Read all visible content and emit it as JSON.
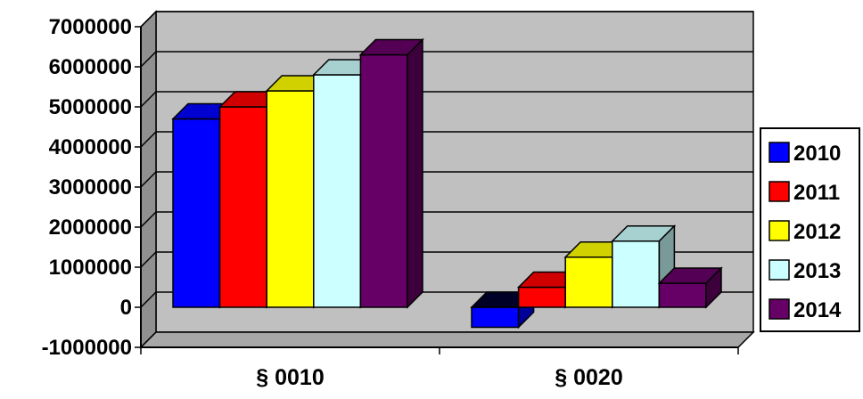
{
  "chart_data": {
    "type": "bar",
    "title": "",
    "xlabel": "",
    "ylabel": "",
    "categories": [
      "§ 0010",
      "§ 0020"
    ],
    "series": [
      {
        "name": "2010",
        "values": [
          4700000,
          -500000
        ],
        "color": "#0000FF"
      },
      {
        "name": "2011",
        "values": [
          5000000,
          500000
        ],
        "color": "#FF0000"
      },
      {
        "name": "2012",
        "values": [
          5400000,
          1250000
        ],
        "color": "#FFFF00"
      },
      {
        "name": "2013",
        "values": [
          5800000,
          1650000
        ],
        "color": "#CCFFFF"
      },
      {
        "name": "2014",
        "values": [
          6300000,
          600000
        ],
        "color": "#660066"
      }
    ],
    "ylim": [
      -1000000,
      7000000
    ],
    "yticks": [
      "7000000",
      "6000000",
      "5000000",
      "4000000",
      "3000000",
      "2000000",
      "1000000",
      "0",
      "-1000000"
    ],
    "grid": true,
    "legend_position": "right",
    "style": "3d-clustered-column",
    "wall_color": "#C0C0C0",
    "floor_color": "#C0C0C0"
  }
}
